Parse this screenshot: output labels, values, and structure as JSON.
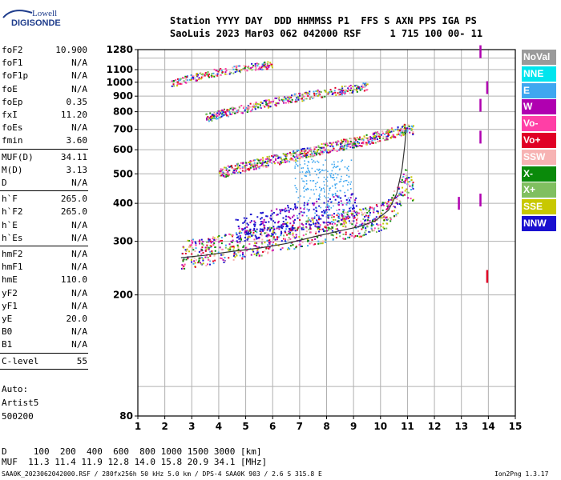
{
  "logo": {
    "line1": "Lowell",
    "line2": "DIGISONDE"
  },
  "header": {
    "row1": "Station YYYY DAY  DDD HHMMSS P1  FFS S AXN PPS IGA PS",
    "row2": "SaoLuis 2023 Mar03 062 042000 RSF     1 715 100 00- 11"
  },
  "params_groups": [
    [
      {
        "name": "foF2",
        "value": "10.900"
      },
      {
        "name": "foF1",
        "value": "N/A"
      },
      {
        "name": "foF1p",
        "value": "N/A"
      },
      {
        "name": "foE",
        "value": "N/A"
      },
      {
        "name": "foEp",
        "value": "0.35"
      },
      {
        "name": "fxI",
        "value": "11.20"
      },
      {
        "name": "foEs",
        "value": "N/A"
      },
      {
        "name": "fmin",
        "value": "3.60"
      }
    ],
    [
      {
        "name": "MUF(D)",
        "value": "34.11"
      },
      {
        "name": "M(D)",
        "value": "3.13"
      },
      {
        "name": "D",
        "value": "N/A"
      }
    ],
    [
      {
        "name": "h`F",
        "value": "265.0"
      },
      {
        "name": "h`F2",
        "value": "265.0"
      },
      {
        "name": "h`E",
        "value": "N/A"
      },
      {
        "name": "h`Es",
        "value": "N/A"
      }
    ],
    [
      {
        "name": "hmF2",
        "value": "N/A"
      },
      {
        "name": "hmF1",
        "value": "N/A"
      },
      {
        "name": "hmE",
        "value": "110.0"
      },
      {
        "name": "yF2",
        "value": "N/A"
      },
      {
        "name": "yF1",
        "value": "N/A"
      },
      {
        "name": "yE",
        "value": "20.0"
      },
      {
        "name": "B0",
        "value": "N/A"
      },
      {
        "name": "B1",
        "value": "N/A"
      }
    ],
    [
      {
        "name": "C-level",
        "value": "55"
      }
    ]
  ],
  "autoscale": {
    "line1": "Auto:",
    "line2": "Artist5",
    "line3": "500200"
  },
  "legend": [
    {
      "label": "NoVal",
      "color": "#9a9a9a"
    },
    {
      "label": "NNE",
      "color": "#00e5ee"
    },
    {
      "label": "E",
      "color": "#3fa7f0"
    },
    {
      "label": "W",
      "color": "#b000b0"
    },
    {
      "label": "Vo-",
      "color": "#ff3fa6"
    },
    {
      "label": "Vo+",
      "color": "#e00025"
    },
    {
      "label": "SSW",
      "color": "#f7b3b3"
    },
    {
      "label": "X-",
      "color": "#0a8a0a"
    },
    {
      "label": "X+",
      "color": "#80bf60"
    },
    {
      "label": "SSE",
      "color": "#c8c800"
    },
    {
      "label": "NNW",
      "color": "#1a10d0"
    }
  ],
  "footer": {
    "d_line": "D     100  200  400  600  800 1000 1500 3000 [km]",
    "muf_line": "MUF  11.3 11.4 11.9 12.8 14.0 15.8 20.9 34.1 [MHz]",
    "file_line": "SAA0K_2023062042000.RSF / 280fx256h 50 kHz 5.0 km / DPS-4 SAA0K 903 / 2.6 S 315.8 E",
    "version": "Ion2Png 1.3.17"
  },
  "chart_data": {
    "type": "scatter",
    "xlim": [
      1,
      15
    ],
    "ylim": [
      80,
      1280
    ],
    "y_scale": "log",
    "x_ticks": [
      1,
      2,
      3,
      4,
      5,
      6,
      7,
      8,
      9,
      10,
      11,
      12,
      13,
      14,
      15
    ],
    "y_ticks": [
      80,
      200,
      300,
      400,
      500,
      600,
      700,
      800,
      900,
      1000,
      1100,
      1280
    ],
    "grid": true,
    "traces": [
      {
        "name": "1st hop",
        "x": [
          2.6,
          3.5,
          4.5,
          5.5,
          6.5,
          7.5,
          8.5,
          9.5,
          10.2,
          10.6,
          10.9,
          11.2
        ],
        "y": [
          265,
          272,
          282,
          292,
          305,
          318,
          330,
          340,
          360,
          400,
          460,
          430
        ]
      },
      {
        "name": "2nd hop",
        "x": [
          4.0,
          5.0,
          6.0,
          7.0,
          8.0,
          9.0,
          10.0,
          10.5,
          11.0,
          11.2
        ],
        "y": [
          500,
          525,
          550,
          575,
          605,
          630,
          660,
          680,
          700,
          690
        ]
      },
      {
        "name": "3rd hop",
        "x": [
          3.5,
          4.5,
          5.5,
          6.5,
          7.5,
          8.5,
          9.5
        ],
        "y": [
          760,
          800,
          835,
          875,
          905,
          935,
          965
        ]
      },
      {
        "name": "4th hop",
        "x": [
          2.2,
          3.0,
          4.0,
          5.0,
          6.0
        ],
        "y": [
          980,
          1030,
          1080,
          1110,
          1140
        ]
      }
    ],
    "profile": {
      "x": [
        2.6,
        3.5,
        4.5,
        5.5,
        6.5,
        7.5,
        8.5,
        9.2,
        9.8,
        10.3,
        10.6,
        10.8,
        10.9,
        10.95
      ],
      "y": [
        265,
        270,
        278,
        285,
        295,
        310,
        325,
        335,
        350,
        380,
        430,
        520,
        620,
        700
      ]
    },
    "scattered_high": {
      "x_range": [
        6.8,
        8.9
      ],
      "y_range": [
        360,
        560
      ]
    },
    "isolated_marks": [
      {
        "x": 13.7,
        "y": 1260,
        "color": "#b000b0"
      },
      {
        "x": 13.7,
        "y": 840,
        "color": "#b000b0"
      },
      {
        "x": 13.7,
        "y": 660,
        "color": "#b000b0"
      },
      {
        "x": 13.7,
        "y": 410,
        "color": "#b000b0"
      },
      {
        "x": 12.9,
        "y": 400,
        "color": "#b000b0"
      },
      {
        "x": 13.95,
        "y": 960,
        "color": "#b000b0"
      },
      {
        "x": 13.95,
        "y": 230,
        "color": "#e00025"
      }
    ]
  }
}
